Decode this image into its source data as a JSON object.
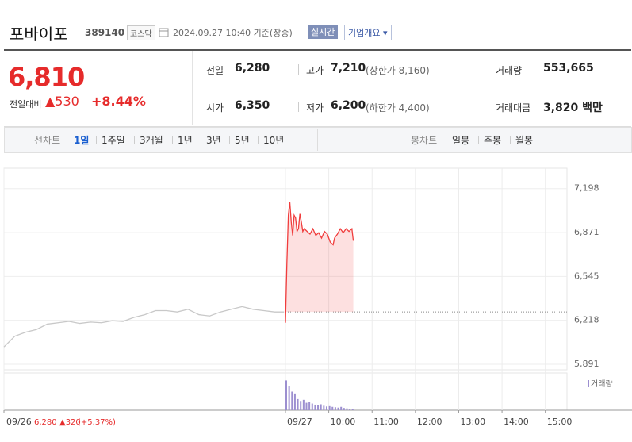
{
  "header": {
    "title": "포바이포",
    "code": "389140",
    "market": "코스닥",
    "timestamp": "2024.09.27 10:40 기준(장중)",
    "realtime": "실시간",
    "company": "기업개요"
  },
  "quote": {
    "price": "6,810",
    "change_label": "전일대비",
    "change": "▲530",
    "rate": "+8.44%",
    "rows": [
      [
        {
          "label": "전일",
          "value": "6,280"
        },
        {
          "label": "고가",
          "value": "7,210",
          "extra": "(상한가 8,160)"
        },
        {
          "label": "거래량",
          "value": "553,665"
        }
      ],
      [
        {
          "label": "시가",
          "value": "6,350"
        },
        {
          "label": "저가",
          "value": "6,200",
          "extra": "(하한가 4,400)"
        },
        {
          "label": "거래대금",
          "value": "3,820 백만"
        }
      ]
    ]
  },
  "tabs": {
    "line_label": "선차트",
    "line": [
      "1일",
      "1주일",
      "3개월",
      "1년",
      "3년",
      "5년",
      "10년"
    ],
    "candle_label": "봉차트",
    "candle": [
      "일봉",
      "주봉",
      "월봉"
    ]
  },
  "chart_data": {
    "type": "line",
    "xlim": [
      -390,
      390
    ],
    "xticks": [
      {
        "value": -390,
        "label": "09/26"
      },
      {
        "value": 0,
        "label": "09/27"
      },
      {
        "value": 60,
        "label": "10:00"
      },
      {
        "value": 120,
        "label": "11:00"
      },
      {
        "value": 180,
        "label": "12:00"
      },
      {
        "value": 240,
        "label": "13:00"
      },
      {
        "value": 300,
        "label": "14:00"
      },
      {
        "value": 360,
        "label": "15:00"
      }
    ],
    "ylim": [
      5850,
      7350
    ],
    "yticks": [
      {
        "value": 7198,
        "label": "7,198"
      },
      {
        "value": 6871,
        "label": "6,871"
      },
      {
        "value": 6545,
        "label": "6,545"
      },
      {
        "value": 6218,
        "label": "6,218"
      },
      {
        "value": 5891,
        "label": "5,891"
      }
    ],
    "base": 6280,
    "prev_day": {
      "close": "6,280",
      "change": "▲320",
      "rate": "(+5.37%)"
    },
    "series": [
      {
        "name": "09/26",
        "color": "#c8c8c8",
        "x": [
          -390,
          -375,
          -360,
          -345,
          -330,
          -315,
          -300,
          -285,
          -270,
          -255,
          -240,
          -225,
          -210,
          -195,
          -180,
          -165,
          -150,
          -135,
          -120,
          -105,
          -90,
          -75,
          -60,
          -45,
          -30,
          -15,
          -2
        ],
        "values": [
          6020,
          6100,
          6130,
          6150,
          6190,
          6200,
          6210,
          6195,
          6205,
          6200,
          6215,
          6210,
          6240,
          6260,
          6290,
          6290,
          6280,
          6300,
          6260,
          6250,
          6280,
          6300,
          6320,
          6300,
          6290,
          6280,
          6280
        ]
      },
      {
        "name": "09/27",
        "color": "#f03c3c",
        "x": [
          0,
          2,
          4,
          6,
          8,
          10,
          12,
          14,
          16,
          18,
          20,
          22,
          24,
          26,
          30,
          34,
          38,
          42,
          46,
          50,
          54,
          58,
          62,
          66,
          68,
          72,
          76,
          80,
          84,
          88,
          92,
          94
        ],
        "values": [
          6200,
          6650,
          7000,
          7100,
          6950,
          6850,
          7000,
          6980,
          6880,
          6900,
          7010,
          6950,
          6880,
          6900,
          6880,
          6860,
          6900,
          6850,
          6870,
          6830,
          6880,
          6860,
          6800,
          6780,
          6830,
          6860,
          6900,
          6870,
          6900,
          6880,
          6900,
          6810
        ]
      }
    ],
    "volume": {
      "name": "거래량",
      "color": "#9c8fd0",
      "lim": [
        0,
        100000
      ],
      "x": [
        0,
        4,
        8,
        12,
        16,
        20,
        24,
        28,
        32,
        36,
        40,
        44,
        48,
        52,
        56,
        60,
        64,
        68,
        72,
        76,
        80,
        84,
        88,
        92
      ],
      "values": [
        80000,
        65000,
        50000,
        45000,
        30000,
        25000,
        28000,
        20000,
        22000,
        18000,
        15000,
        14000,
        16000,
        12000,
        10000,
        11000,
        9000,
        8000,
        7000,
        9000,
        6000,
        5000,
        4000,
        3000
      ]
    }
  }
}
